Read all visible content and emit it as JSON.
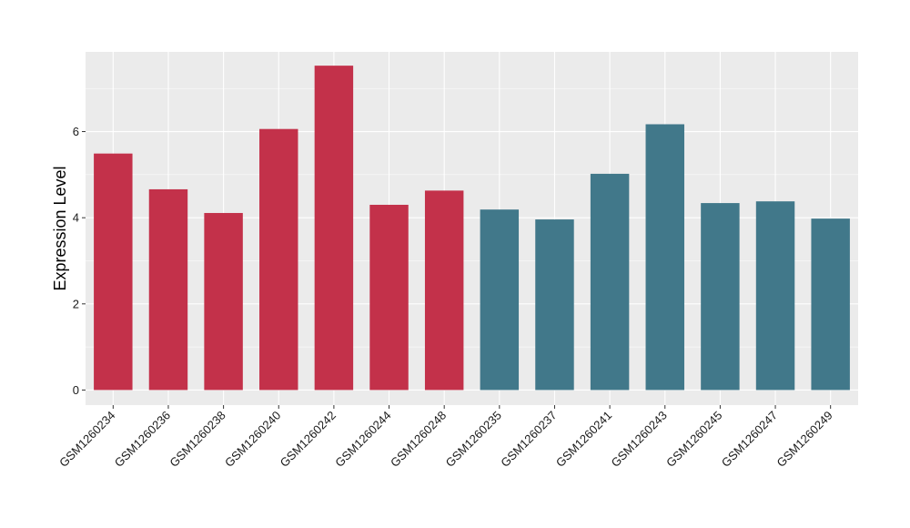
{
  "chart_data": {
    "type": "bar",
    "title": "",
    "xlabel": "",
    "ylabel": "Expression Level",
    "ylim": [
      -0.35,
      7.85
    ],
    "yticks": [
      0,
      2,
      4,
      6
    ],
    "grid": true,
    "legend": "none",
    "categories": [
      "GSM1260234",
      "GSM1260236",
      "GSM1260238",
      "GSM1260240",
      "GSM1260242",
      "GSM1260244",
      "GSM1260248",
      "GSM1260235",
      "GSM1260237",
      "GSM1260241",
      "GSM1260243",
      "GSM1260245",
      "GSM1260247",
      "GSM1260249"
    ],
    "values": [
      5.49,
      4.66,
      4.11,
      6.06,
      7.53,
      4.3,
      4.63,
      4.19,
      3.96,
      5.02,
      6.17,
      4.34,
      4.38,
      3.98
    ],
    "group_colors": {
      "red": "#c3314a",
      "teal": "#41788a"
    },
    "bar_groups": [
      "red",
      "red",
      "red",
      "red",
      "red",
      "red",
      "red",
      "teal",
      "teal",
      "teal",
      "teal",
      "teal",
      "teal",
      "teal"
    ],
    "panel_background": "#ebebeb",
    "grid_color": "#ffffff"
  }
}
